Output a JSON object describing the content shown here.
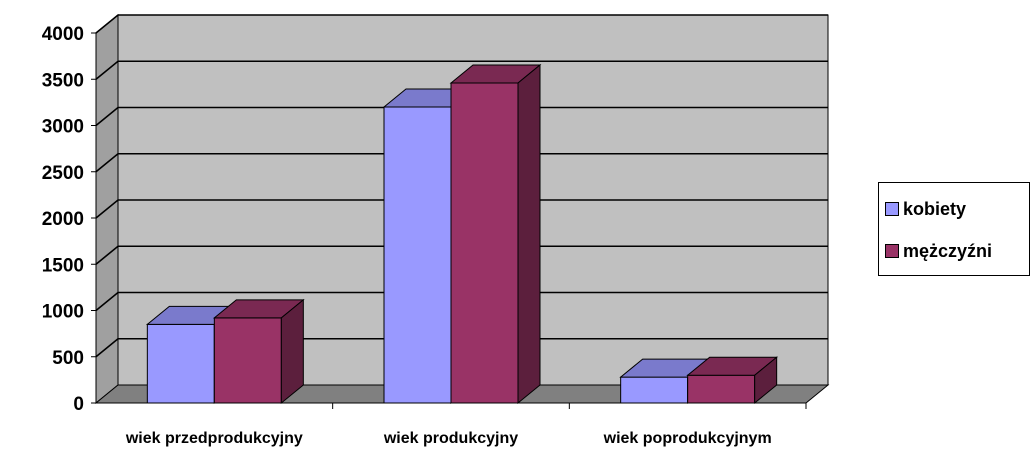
{
  "chart_data": {
    "type": "bar",
    "categories": [
      "wiek przedprodukcyjny",
      "wiek produkcyjny",
      "wiek poprodukcyjnym"
    ],
    "series": [
      {
        "name": "kobiety",
        "values": [
          850,
          3200,
          280
        ],
        "color": "#9999ff"
      },
      {
        "name": "mężczyźni",
        "values": [
          920,
          3460,
          300
        ],
        "color": "#993366"
      }
    ],
    "ylim": [
      0,
      4000
    ],
    "yticks": [
      "0",
      "500",
      "1000",
      "1500",
      "2000",
      "2500",
      "3000",
      "3500",
      "4000"
    ],
    "title": "",
    "xlabel": "",
    "ylabel": "",
    "grid": true,
    "legend_position": "right",
    "wall_color": "#c0c0c0",
    "floor_color": "#808080"
  }
}
